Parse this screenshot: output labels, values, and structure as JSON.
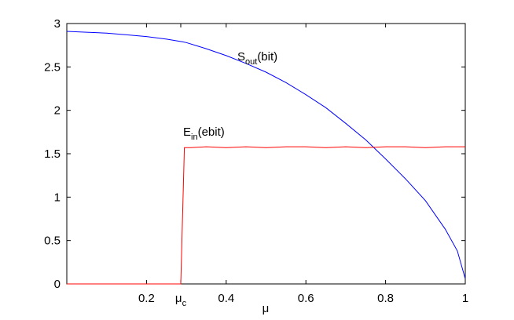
{
  "chart_data": {
    "type": "line",
    "xlabel": "μ",
    "ylabel": "",
    "xlim": [
      0,
      1
    ],
    "ylim": [
      0,
      3
    ],
    "grid": false,
    "x_ticks": [
      {
        "value": 0.2,
        "label": "0.2"
      },
      {
        "value": 0.286,
        "label": "μ",
        "sub": "c"
      },
      {
        "value": 0.4,
        "label": "0.4"
      },
      {
        "value": 0.6,
        "label": "0.6"
      },
      {
        "value": 0.8,
        "label": "0.8"
      },
      {
        "value": 1.0,
        "label": "1"
      }
    ],
    "y_ticks": [
      {
        "value": 0,
        "label": "0"
      },
      {
        "value": 0.5,
        "label": "0.5"
      },
      {
        "value": 1,
        "label": "1"
      },
      {
        "value": 1.5,
        "label": "1.5"
      },
      {
        "value": 2,
        "label": "2"
      },
      {
        "value": 2.5,
        "label": "2.5"
      },
      {
        "value": 3,
        "label": "3"
      }
    ],
    "series": [
      {
        "color": "#0000ff",
        "x": [
          0,
          0.05,
          0.1,
          0.15,
          0.2,
          0.25,
          0.29,
          0.3,
          0.35,
          0.4,
          0.45,
          0.5,
          0.55,
          0.6,
          0.65,
          0.7,
          0.75,
          0.8,
          0.85,
          0.9,
          0.95,
          0.98,
          1.0
        ],
        "values": [
          2.91,
          2.9,
          2.89,
          2.87,
          2.85,
          2.82,
          2.79,
          2.78,
          2.71,
          2.63,
          2.54,
          2.44,
          2.32,
          2.18,
          2.03,
          1.85,
          1.66,
          1.44,
          1.21,
          0.96,
          0.63,
          0.38,
          0.06
        ]
      },
      {
        "color": "#ff0000",
        "x": [
          0,
          0.286,
          0.295,
          0.31,
          0.35,
          0.4,
          0.45,
          0.5,
          0.55,
          0.6,
          0.65,
          0.7,
          0.75,
          0.8,
          0.85,
          0.9,
          0.95,
          1.0
        ],
        "values": [
          0,
          0,
          1.57,
          1.57,
          1.58,
          1.57,
          1.58,
          1.57,
          1.58,
          1.58,
          1.57,
          1.58,
          1.57,
          1.58,
          1.58,
          1.57,
          1.58,
          1.58
        ]
      }
    ],
    "annotations": [
      {
        "id": "sout",
        "main": "S",
        "sub": "out",
        "rest": "(bit)"
      },
      {
        "id": "ein",
        "main": "E",
        "sub": "in",
        "rest": "(ebit)"
      }
    ]
  }
}
